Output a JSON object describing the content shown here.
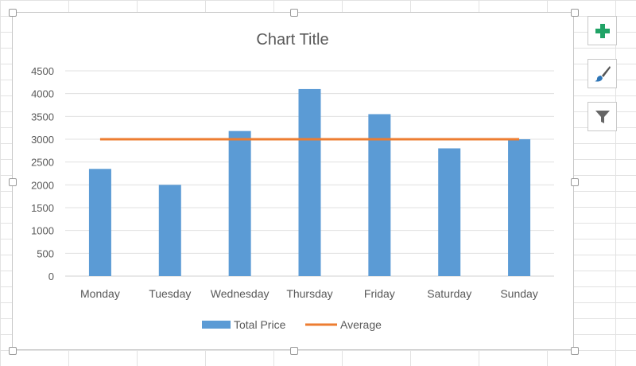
{
  "chart_data": {
    "type": "bar",
    "title": "Chart Title",
    "categories": [
      "Monday",
      "Tuesday",
      "Wednesday",
      "Thursday",
      "Friday",
      "Saturday",
      "Sunday"
    ],
    "series": [
      {
        "name": "Total Price",
        "type": "bar",
        "color": "#5b9bd5",
        "values": [
          2350,
          2000,
          3180,
          4100,
          3550,
          2800,
          3000
        ]
      },
      {
        "name": "Average",
        "type": "line",
        "color": "#ed7d31",
        "values": [
          3000,
          3000,
          3000,
          3000,
          3000,
          3000,
          3000
        ]
      }
    ],
    "ylim": [
      0,
      4500
    ],
    "yticks": [
      0,
      500,
      1000,
      1500,
      2000,
      2500,
      3000,
      3500,
      4000,
      4500
    ],
    "grid": true,
    "legend": "bottom"
  },
  "side_buttons": [
    {
      "icon": "plus-icon",
      "color": "#21a366"
    },
    {
      "icon": "paintbrush-icon",
      "color": "#2e75b6"
    },
    {
      "icon": "filter-icon",
      "color": "#666666"
    }
  ]
}
